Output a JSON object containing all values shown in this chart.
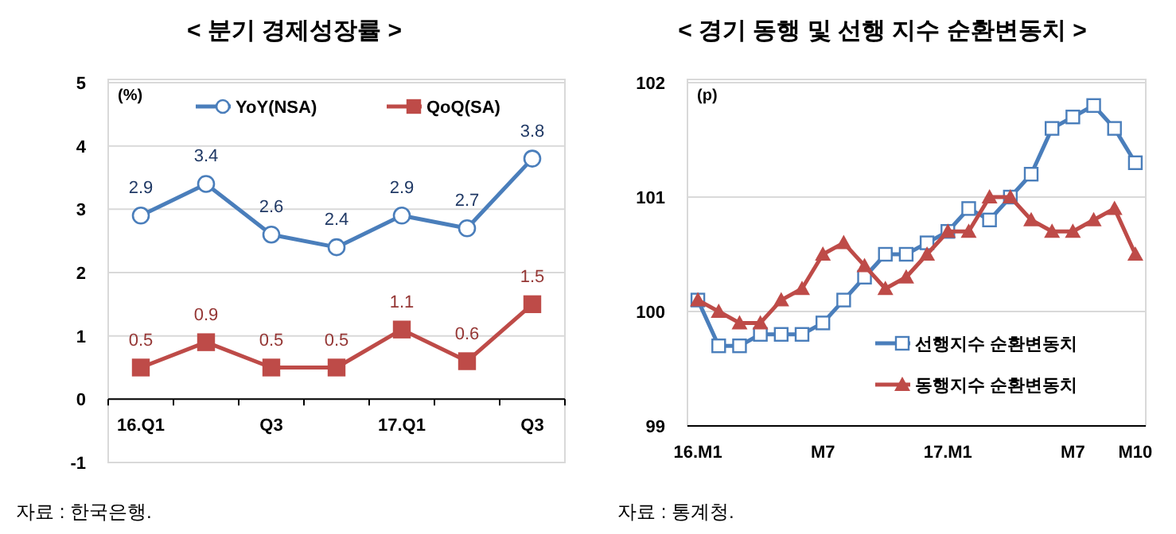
{
  "chart_data": [
    {
      "type": "line",
      "title": "< 분기 경제성장률 >",
      "ylabel": "(%)",
      "categories": [
        "16.Q1",
        null,
        "Q3",
        null,
        "17.Q1",
        null,
        "Q3"
      ],
      "ylim": [
        -1,
        5
      ],
      "yticks": [
        -1,
        0,
        1,
        2,
        3,
        4,
        5
      ],
      "grid": "y",
      "legend": "top",
      "data_labels": true,
      "line_style": "solid",
      "series": [
        {
          "name": "YoY(NSA)",
          "color": "#4a7ebb",
          "marker": "circle",
          "values": [
            2.9,
            3.4,
            2.6,
            2.4,
            2.9,
            2.7,
            3.8
          ]
        },
        {
          "name": "QoQ(SA)",
          "color": "#be4b48",
          "marker": "square",
          "values": [
            0.5,
            0.9,
            0.5,
            0.5,
            1.1,
            0.6,
            1.5
          ]
        }
      ],
      "annotations": [
        "자료 : 한국은행."
      ]
    },
    {
      "type": "line",
      "title": "< 경기 동행 및 선행 지수 순환변동치 >",
      "ylabel": "(p)",
      "categories": [
        "16.M1",
        null,
        null,
        null,
        null,
        null,
        "M7",
        null,
        null,
        null,
        null,
        null,
        "17.M1",
        null,
        null,
        null,
        null,
        null,
        "M7",
        null,
        null,
        "M10"
      ],
      "ylim": [
        99,
        102
      ],
      "yticks": [
        99,
        100,
        101,
        102
      ],
      "grid": "y",
      "legend": "bottom right",
      "line_style": "solid",
      "series": [
        {
          "name": "선행지수 순환변동치",
          "color": "#4a7ebb",
          "marker": "square",
          "values": [
            100.1,
            99.7,
            99.7,
            99.8,
            99.8,
            99.8,
            99.9,
            100.1,
            100.3,
            100.5,
            100.5,
            100.6,
            100.7,
            100.9,
            100.8,
            101.0,
            101.2,
            101.6,
            101.7,
            101.8,
            101.6,
            101.3
          ]
        },
        {
          "name": "동행지수 순환변동치",
          "color": "#be4b48",
          "marker": "triangle",
          "values": [
            100.1,
            100.0,
            99.9,
            99.9,
            100.1,
            100.2,
            100.5,
            100.6,
            100.4,
            100.2,
            100.3,
            100.5,
            100.7,
            100.7,
            101.0,
            101.0,
            100.8,
            100.7,
            100.7,
            100.8,
            100.9,
            100.5
          ]
        }
      ],
      "annotations": [
        "자료 : 통계청."
      ]
    }
  ]
}
